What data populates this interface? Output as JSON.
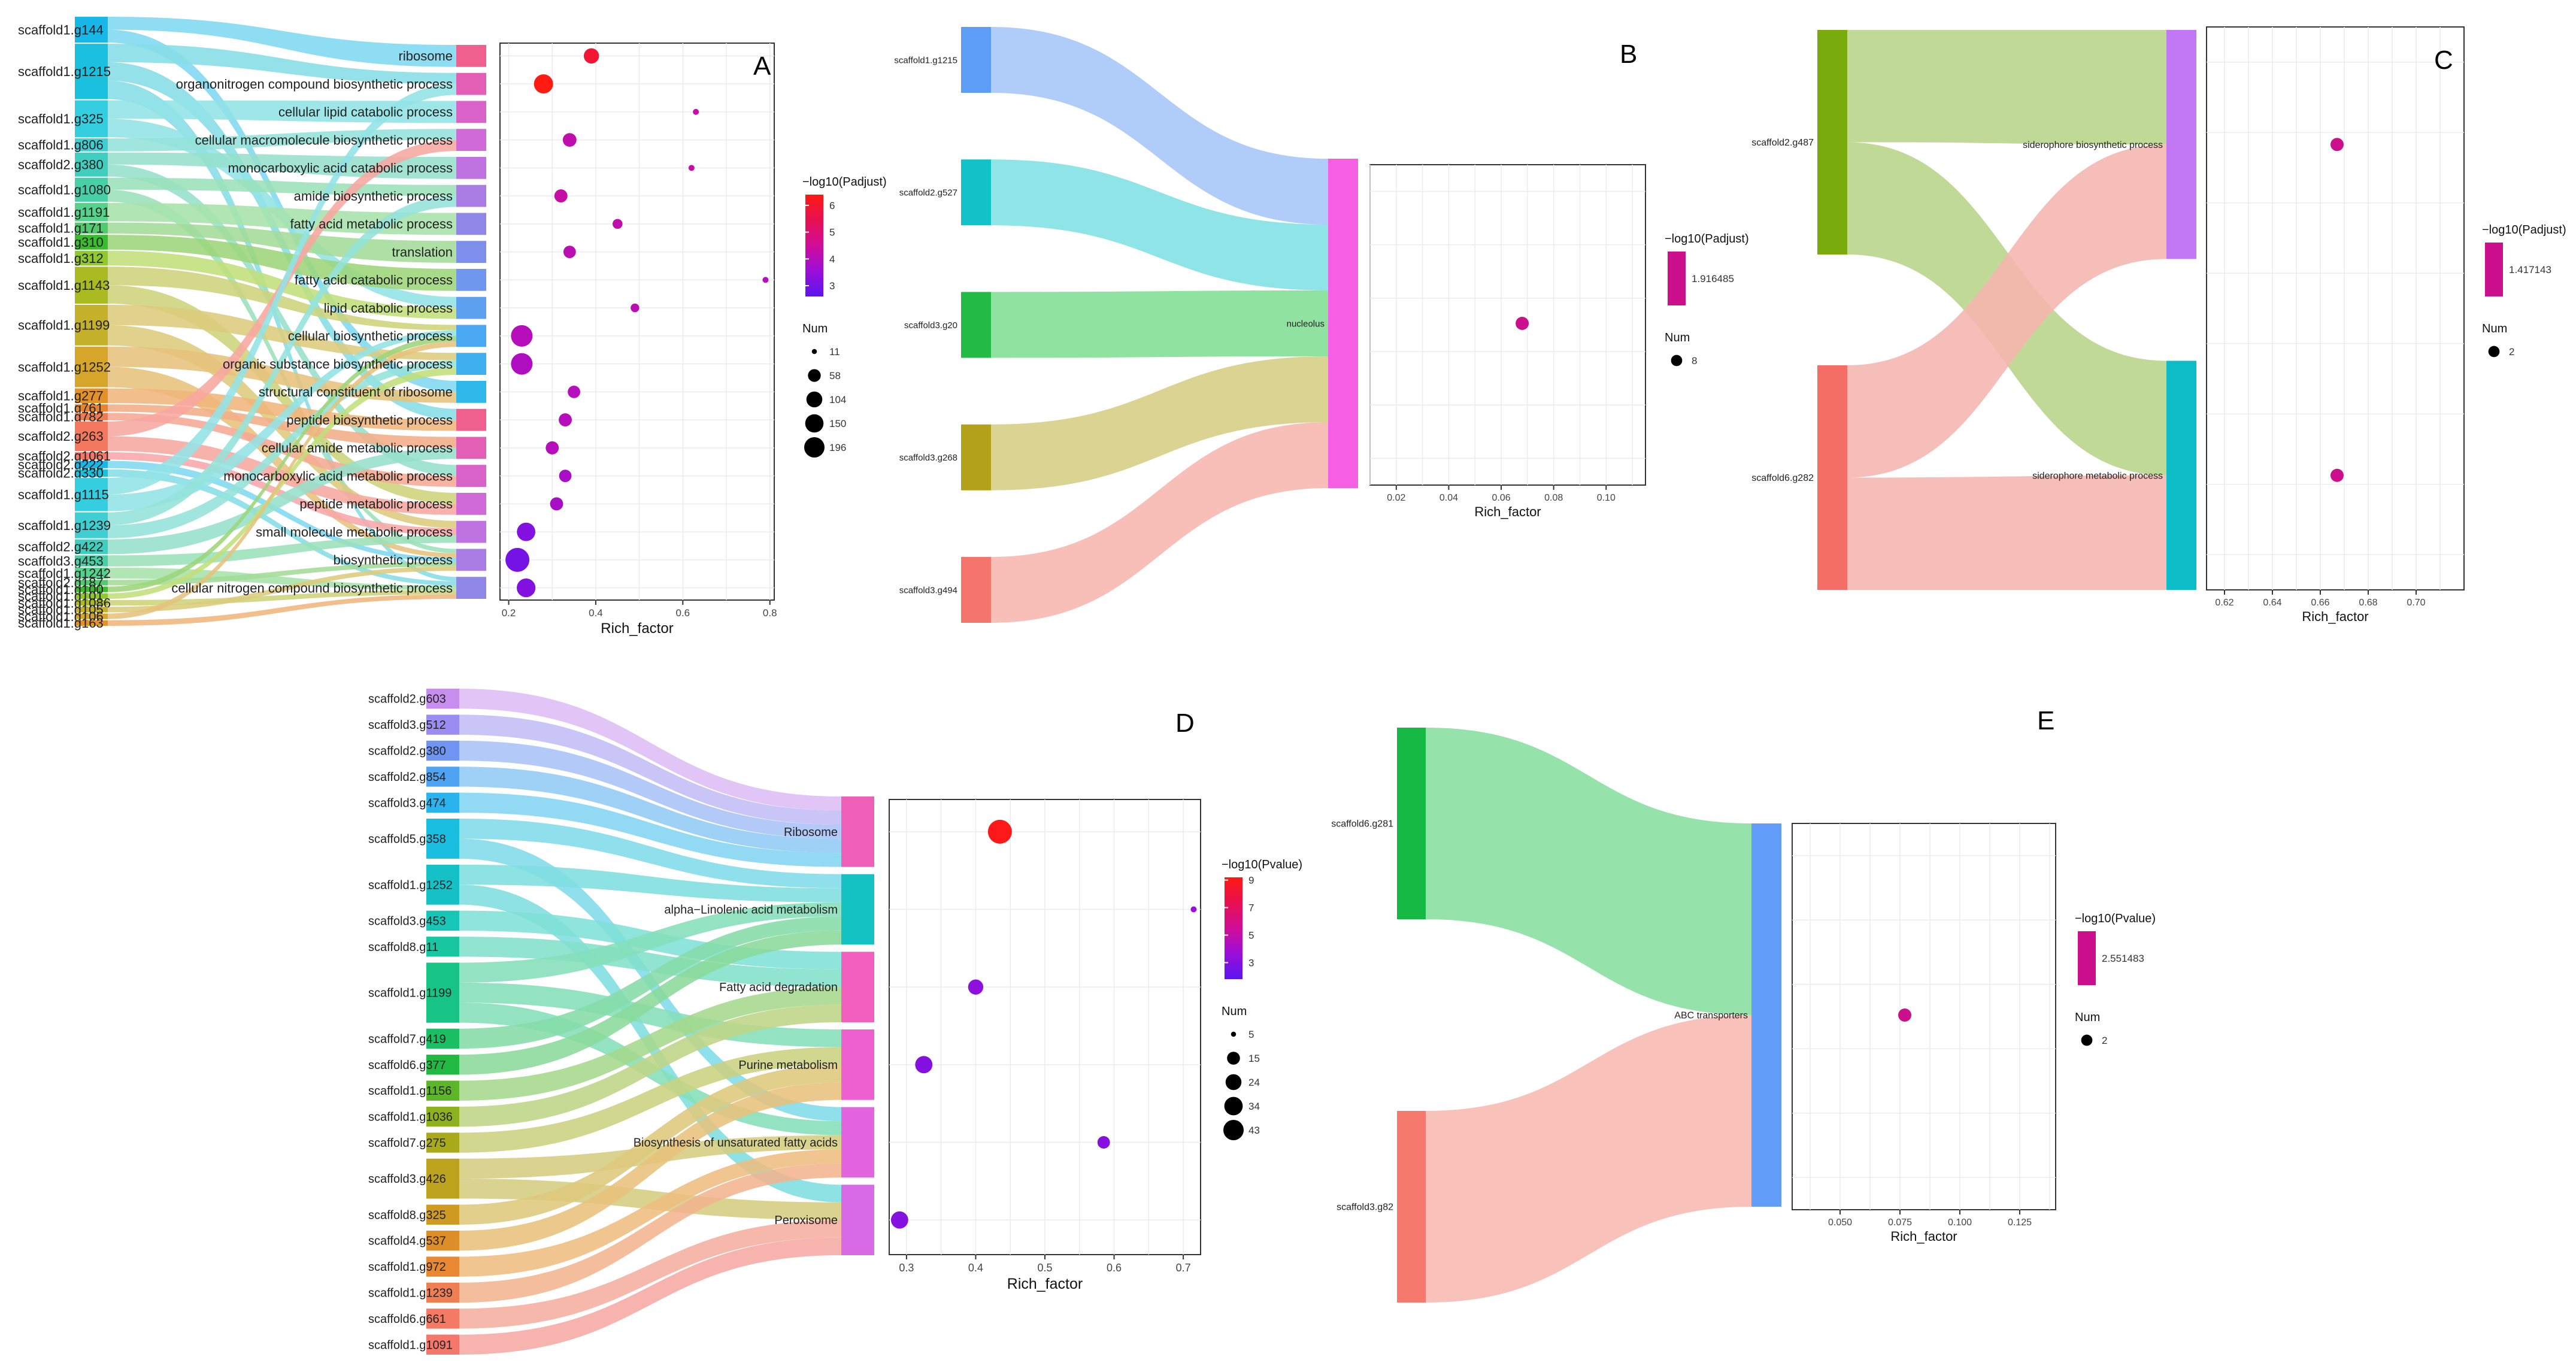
{
  "panels": [
    {
      "id": "A",
      "letter": "A",
      "node_colors": [
        "#17b7e8",
        "#1bc0df",
        "#35cde0",
        "#3fcfd2",
        "#40cfbf",
        "#48cfa6",
        "#55d38c",
        "#52c96e",
        "#3bbb2e",
        "#8fc92b",
        "#aabb22",
        "#c5b02a",
        "#d5a62a",
        "#e49128",
        "#e8842f",
        "#ee7a50",
        "#f3785e",
        "#f5776b"
      ],
      "flow_colors": [
        "#7fd8f0",
        "#86dde6",
        "#92e3e6",
        "#94e2d9",
        "#95e0cb",
        "#9be0ba",
        "#a6e3aa",
        "#a3dc98",
        "#9dd57a",
        "#c1df7a",
        "#cdd37a",
        "#dccb7c",
        "#e6c27c",
        "#f0b57b",
        "#f2ad86",
        "#f5a894",
        "#f7a7a0",
        "#f8a6a8"
      ],
      "term_colors": [
        "#f0608e",
        "#e25fb5",
        "#da63c9",
        "#cf6ad8",
        "#bf73e0",
        "#a97de3",
        "#9086e7",
        "#7d8fea",
        "#6f97ee",
        "#5da0f0",
        "#4ba8f2",
        "#3eafef",
        "#2fb7ea"
      ],
      "genes": [
        {
          "label": "scaffold1.g144",
          "weight": 1.4
        },
        {
          "label": "scaffold1.g1215",
          "weight": 3.0
        },
        {
          "label": "scaffold1.g325",
          "weight": 2.0
        },
        {
          "label": "scaffold1.g806",
          "weight": 0.7
        },
        {
          "label": "scaffold2.g380",
          "weight": 1.3
        },
        {
          "label": "scaffold1.g1080",
          "weight": 1.3
        },
        {
          "label": "scaffold1.g1191",
          "weight": 1.0
        },
        {
          "label": "scaffold1.g171",
          "weight": 0.6
        },
        {
          "label": "scaffold1.g310",
          "weight": 0.8
        },
        {
          "label": "scaffold1.g312",
          "weight": 0.8
        },
        {
          "label": "scaffold1.g1143",
          "weight": 2.0
        },
        {
          "label": "scaffold1.g1199",
          "weight": 2.2
        },
        {
          "label": "scaffold1.g1252",
          "weight": 2.2
        },
        {
          "label": "scaffold1.g277",
          "weight": 0.8
        },
        {
          "label": "scaffold1.g761",
          "weight": 0.4
        },
        {
          "label": "scaffold1.g782",
          "weight": 0.4
        },
        {
          "label": "scaffold2.g263",
          "weight": 1.6
        },
        {
          "label": "scaffold2.g1061",
          "weight": 0.4
        },
        {
          "label": "scaffold2.g222",
          "weight": 0.4
        },
        {
          "label": "scaffold2.g330",
          "weight": 0.4
        },
        {
          "label": "scaffold1.g1115",
          "weight": 1.8
        },
        {
          "label": "scaffold1.g1239",
          "weight": 1.4
        },
        {
          "label": "scaffold2.g422",
          "weight": 0.8
        },
        {
          "label": "scaffold3.g453",
          "weight": 0.6
        },
        {
          "label": "scaffold1.g1242",
          "weight": 0.6
        },
        {
          "label": "scaffold2.g187",
          "weight": 0.3
        },
        {
          "label": "scaffold1.g100",
          "weight": 0.3
        },
        {
          "label": "scaffold1.g101",
          "weight": 0.3
        },
        {
          "label": "scaffold1.g1086",
          "weight": 0.3
        },
        {
          "label": "scaffold1.g105",
          "weight": 0.3
        },
        {
          "label": "scaffold1.g106",
          "weight": 0.3
        },
        {
          "label": "scaffold1.g163",
          "weight": 0.3
        }
      ],
      "terms": [
        "ribosome",
        "organonitrogen compound biosynthetic process",
        "cellular lipid catabolic process",
        "cellular macromolecule biosynthetic process",
        "monocarboxylic acid catabolic process",
        "amide biosynthetic process",
        "fatty acid metabolic process",
        "translation",
        "fatty acid catabolic process",
        "lipid catabolic process",
        "cellular biosynthetic process",
        "organic substance biosynthetic process",
        "structural constituent of ribosome",
        "peptide biosynthetic process",
        "cellular amide metabolic process",
        "monocarboxylic acid metabolic process",
        "peptide metabolic process",
        "small molecule metabolic process",
        "biosynthetic process",
        "cellular nitrogen compound biosynthetic process"
      ],
      "links": [
        [
          0,
          0
        ],
        [
          0,
          12
        ],
        [
          1,
          1
        ],
        [
          1,
          13
        ],
        [
          1,
          19
        ],
        [
          2,
          2
        ],
        [
          2,
          9
        ],
        [
          3,
          3
        ],
        [
          4,
          4
        ],
        [
          4,
          15
        ],
        [
          5,
          5
        ],
        [
          5,
          18
        ],
        [
          6,
          6
        ],
        [
          7,
          7
        ],
        [
          8,
          8
        ],
        [
          9,
          9
        ],
        [
          10,
          10
        ],
        [
          10,
          16
        ],
        [
          11,
          11
        ],
        [
          11,
          17
        ],
        [
          12,
          12
        ],
        [
          12,
          18
        ],
        [
          13,
          13
        ],
        [
          14,
          14
        ],
        [
          15,
          15
        ],
        [
          16,
          16
        ],
        [
          16,
          3
        ],
        [
          17,
          17
        ],
        [
          18,
          18
        ],
        [
          19,
          19
        ],
        [
          20,
          10
        ],
        [
          20,
          1
        ],
        [
          21,
          11
        ],
        [
          21,
          5
        ],
        [
          22,
          14
        ],
        [
          23,
          17
        ],
        [
          24,
          19
        ],
        [
          25,
          18
        ],
        [
          26,
          10
        ],
        [
          27,
          11
        ],
        [
          28,
          19
        ],
        [
          29,
          18
        ],
        [
          30,
          10
        ],
        [
          31,
          19
        ]
      ],
      "chart_data": {
        "type": "scatter",
        "xlabel": "Rich_factor",
        "xticks": [
          0.2,
          0.4,
          0.6,
          0.8
        ],
        "xlim": [
          0.18,
          0.81
        ],
        "y_categories": [
          "ribosome",
          "organonitrogen compound biosynthetic process",
          "cellular lipid catabolic process",
          "cellular macromolecule biosynthetic process",
          "monocarboxylic acid catabolic process",
          "amide biosynthetic process",
          "fatty acid metabolic process",
          "translation",
          "fatty acid catabolic process",
          "lipid catabolic process",
          "cellular biosynthetic process",
          "organic substance biosynthetic process",
          "structural constituent of ribosome",
          "peptide biosynthetic process",
          "cellular amide metabolic process",
          "monocarboxylic acid metabolic process",
          "peptide metabolic process",
          "small molecule metabolic process",
          "biosynthetic process",
          "cellular nitrogen compound biosynthetic process"
        ],
        "x": [
          0.39,
          0.28,
          0.63,
          0.34,
          0.62,
          0.32,
          0.45,
          0.34,
          0.79,
          0.49,
          0.23,
          0.23,
          0.35,
          0.33,
          0.3,
          0.33,
          0.31,
          0.24,
          0.22,
          0.24
        ],
        "num": [
          60,
          110,
          11,
          45,
          11,
          40,
          20,
          35,
          11,
          15,
          150,
          150,
          35,
          40,
          40,
          35,
          40,
          100,
          196,
          104
        ],
        "color_value": [
          5.9,
          6.4,
          4.3,
          4.2,
          4.3,
          4.3,
          4.2,
          4.1,
          4.0,
          4.1,
          4.0,
          3.9,
          4.0,
          4.0,
          4.0,
          3.8,
          3.8,
          3.2,
          3.0,
          3.2
        ],
        "color_title": "−log10(Padjust)",
        "color_ticks": [
          6,
          5,
          4,
          3
        ],
        "color_range": [
          2.6,
          6.4
        ],
        "size_title": "Num",
        "size_values": [
          11,
          58,
          104,
          150,
          196
        ]
      }
    },
    {
      "id": "B",
      "letter": "B",
      "node_colors": [
        "#5e9df5",
        "#12c2c9",
        "#23ba45",
        "#b3a11a",
        "#f4756c"
      ],
      "flow_colors": [
        "#a4c6f7",
        "#7ee0e3",
        "#80de92",
        "#d6cd83",
        "#f7b5ae"
      ],
      "term_colors": [
        "#f45fe4"
      ],
      "genes": [
        {
          "label": "scaffold1.g1215",
          "weight": 1
        },
        {
          "label": "scaffold2.g527",
          "weight": 1
        },
        {
          "label": "scaffold3.g20",
          "weight": 1
        },
        {
          "label": "scaffold3.g268",
          "weight": 1
        },
        {
          "label": "scaffold3.g494",
          "weight": 1
        }
      ],
      "terms": [
        "nucleolus"
      ],
      "links": [
        [
          0,
          0
        ],
        [
          1,
          0
        ],
        [
          2,
          0
        ],
        [
          3,
          0
        ],
        [
          4,
          0
        ]
      ],
      "chart_data": {
        "type": "scatter",
        "xlabel": "Rich_factor",
        "xticks": [
          0.02,
          0.04,
          0.06,
          0.08,
          0.1
        ],
        "xtick_labels": [
          "0.02",
          "0.04",
          "0.06",
          "0.08",
          "0.10"
        ],
        "xlim": [
          0.01,
          0.115
        ],
        "y_categories": [
          "nucleolus"
        ],
        "x": [
          0.068
        ],
        "num": [
          8
        ],
        "color_value": [
          1.916485
        ],
        "color_title": "−log10(Padjust)",
        "color_ticks": [],
        "color_single_label": "1.916485",
        "size_title": "Num",
        "size_values": [
          8
        ]
      }
    },
    {
      "id": "C",
      "letter": "C",
      "node_colors": [
        "#7aab0c",
        "#f46e65"
      ],
      "flow_colors": [
        "#b8d488",
        "#f5b5ae"
      ],
      "term_colors": [
        "#c277f5",
        "#0cbcc7"
      ],
      "genes": [
        {
          "label": "scaffold2.g487",
          "weight": 1
        },
        {
          "label": "scaffold6.g282",
          "weight": 1
        }
      ],
      "terms": [
        "siderophore biosynthetic process",
        "siderophore metabolic process"
      ],
      "links": [
        [
          0,
          0
        ],
        [
          0,
          1
        ],
        [
          1,
          0
        ],
        [
          1,
          1
        ]
      ],
      "chart_data": {
        "type": "scatter",
        "xlabel": "Rich_factor",
        "xticks": [
          0.62,
          0.64,
          0.66,
          0.68,
          0.7
        ],
        "xtick_labels": [
          "0.62",
          "0.64",
          "0.66",
          "0.68",
          "0.70"
        ],
        "xlim": [
          0.6125,
          0.72
        ],
        "y_categories": [
          "siderophore biosynthetic process",
          "siderophore metabolic process"
        ],
        "x": [
          0.667,
          0.667
        ],
        "num": [
          2,
          2
        ],
        "color_value": [
          1.417143,
          1.417143
        ],
        "color_title": "−log10(Padjust)",
        "color_ticks": [],
        "color_single_label": "1.417143",
        "size_title": "Num",
        "size_values": [
          2
        ]
      }
    },
    {
      "id": "D",
      "letter": "D",
      "node_colors": [
        "#c78ef0",
        "#9b8cf2",
        "#7094f2",
        "#4ea3f2",
        "#2bb3ee",
        "#18bde0",
        "#15c1c7",
        "#17c6b6",
        "#19c6a2",
        "#18c386",
        "#1bbe62",
        "#22b942",
        "#5db62a",
        "#8eb21d",
        "#a9aa1b",
        "#bda31d",
        "#cf9a22",
        "#de8e29",
        "#e88833",
        "#ef7e52",
        "#f47a64",
        "#f5776b"
      ],
      "flow_colors": [
        "#ddbdf5",
        "#c3bdf6",
        "#a8c2f6",
        "#92cbf5",
        "#83d4f1",
        "#7fdbe9",
        "#7fdee0",
        "#80e0d6",
        "#82e0ca",
        "#84dfba",
        "#86dca8",
        "#8ad99a",
        "#a5d88c",
        "#bfd586",
        "#cbd180",
        "#d5cd7f",
        "#dec87c",
        "#e8c17c",
        "#eebd80",
        "#f2b48e",
        "#f5ae9e",
        "#f6aaa4"
      ],
      "term_colors": [
        "#ee5fba",
        "#15c2c3",
        "#f35fbf",
        "#ee5fd0",
        "#e463df",
        "#d96ae6"
      ],
      "genes": [
        {
          "label": "scaffold2.g603",
          "weight": 1
        },
        {
          "label": "scaffold3.g512",
          "weight": 1
        },
        {
          "label": "scaffold2.g380",
          "weight": 1
        },
        {
          "label": "scaffold2.g854",
          "weight": 1
        },
        {
          "label": "scaffold3.g474",
          "weight": 1
        },
        {
          "label": "scaffold5.g358",
          "weight": 2
        },
        {
          "label": "scaffold1.g1252",
          "weight": 2
        },
        {
          "label": "scaffold3.g453",
          "weight": 1
        },
        {
          "label": "scaffold8.g11",
          "weight": 1
        },
        {
          "label": "scaffold1.g1199",
          "weight": 3
        },
        {
          "label": "scaffold7.g419",
          "weight": 1
        },
        {
          "label": "scaffold6.g377",
          "weight": 1
        },
        {
          "label": "scaffold1.g1156",
          "weight": 1
        },
        {
          "label": "scaffold1.g1036",
          "weight": 1
        },
        {
          "label": "scaffold7.g275",
          "weight": 1
        },
        {
          "label": "scaffold3.g426",
          "weight": 2
        },
        {
          "label": "scaffold8.g325",
          "weight": 1
        },
        {
          "label": "scaffold4.g537",
          "weight": 1
        },
        {
          "label": "scaffold1.g972",
          "weight": 1
        },
        {
          "label": "scaffold1.g1239",
          "weight": 1
        },
        {
          "label": "scaffold6.g661",
          "weight": 1
        },
        {
          "label": "scaffold1.g1091",
          "weight": 1
        }
      ],
      "terms": [
        "Ribosome",
        "alpha−Linolenic acid metabolism",
        "Fatty acid degradation",
        "Purine metabolism",
        "Biosynthesis of unsaturated fatty acids",
        "Peroxisome"
      ],
      "links": [
        [
          0,
          0
        ],
        [
          1,
          0
        ],
        [
          2,
          0
        ],
        [
          3,
          0
        ],
        [
          4,
          0
        ],
        [
          5,
          1
        ],
        [
          5,
          4
        ],
        [
          6,
          1
        ],
        [
          6,
          5
        ],
        [
          7,
          2
        ],
        [
          8,
          2
        ],
        [
          9,
          1
        ],
        [
          9,
          3
        ],
        [
          9,
          4
        ],
        [
          10,
          1
        ],
        [
          11,
          1
        ],
        [
          12,
          2
        ],
        [
          13,
          2
        ],
        [
          14,
          3
        ],
        [
          15,
          4
        ],
        [
          15,
          5
        ],
        [
          16,
          3
        ],
        [
          17,
          3
        ],
        [
          18,
          4
        ],
        [
          19,
          4
        ],
        [
          20,
          5
        ],
        [
          21,
          5
        ]
      ],
      "chart_data": {
        "type": "scatter",
        "xlabel": "Rich_factor",
        "xticks": [
          0.3,
          0.4,
          0.5,
          0.6,
          0.7
        ],
        "xtick_labels": [
          "0.3",
          "0.4",
          "0.5",
          "0.6",
          "0.7"
        ],
        "xlim": [
          0.275,
          0.725
        ],
        "y_categories": [
          "Ribosome",
          "alpha−Linolenic acid metabolism",
          "Fatty acid degradation",
          "Purine metabolism",
          "Biosynthesis of unsaturated fatty acids",
          "Peroxisome"
        ],
        "x": [
          0.435,
          0.715,
          0.4,
          0.325,
          0.585,
          0.29
        ],
        "num": [
          43,
          5,
          15,
          20,
          10,
          20
        ],
        "color_value": [
          9.0,
          3.5,
          3.3,
          3.0,
          3.1,
          3.0
        ],
        "color_title": "−log10(Pvalue)",
        "color_ticks": [
          9,
          7,
          5,
          3
        ],
        "color_range": [
          1.8,
          9.2
        ],
        "size_title": "Num",
        "size_values": [
          5,
          15,
          24,
          34,
          43
        ]
      }
    },
    {
      "id": "E",
      "letter": "E",
      "node_colors": [
        "#15b943",
        "#f5796d"
      ],
      "flow_colors": [
        "#86de9e",
        "#f7b8b1"
      ],
      "term_colors": [
        "#629dfa"
      ],
      "genes": [
        {
          "label": "scaffold6.g281",
          "weight": 1
        },
        {
          "label": "scaffold3.g82",
          "weight": 1
        }
      ],
      "terms": [
        "ABC transporters"
      ],
      "links": [
        [
          0,
          0
        ],
        [
          1,
          0
        ]
      ],
      "chart_data": {
        "type": "scatter",
        "xlabel": "Rich_factor",
        "xticks": [
          0.05,
          0.075,
          0.1,
          0.125
        ],
        "xtick_labels": [
          "0.050",
          "0.075",
          "0.100",
          "0.125"
        ],
        "xlim": [
          0.03,
          0.14
        ],
        "y_categories": [
          "ABC transporters"
        ],
        "x": [
          0.077
        ],
        "num": [
          2
        ],
        "color_value": [
          2.551483
        ],
        "color_title": "−log10(Pvalue)",
        "color_ticks": [],
        "color_single_label": "2.551483",
        "size_title": "Num",
        "size_values": [
          2
        ]
      }
    }
  ]
}
